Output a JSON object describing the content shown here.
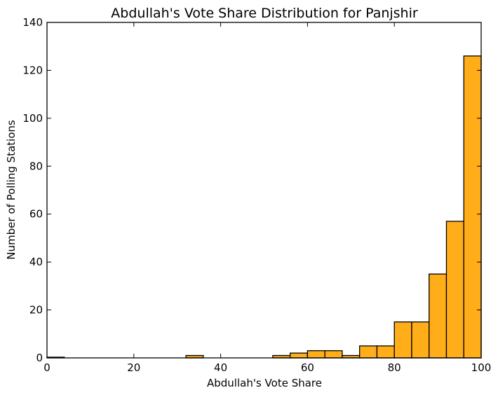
{
  "chart_data": {
    "type": "bar",
    "title": "Abdullah's Vote Share Distribution for Panjshir",
    "xlabel": "Abdullah's Vote Share",
    "ylabel": "Number of Polling Stations",
    "xlim": [
      0,
      100
    ],
    "ylim": [
      0,
      140
    ],
    "xticks": [
      "0",
      "20",
      "40",
      "60",
      "80",
      "100"
    ],
    "yticks": [
      "0",
      "20",
      "40",
      "60",
      "80",
      "100",
      "120",
      "140"
    ],
    "bar_color": "#ffad19",
    "grid": false,
    "bins": [
      {
        "x0": 0,
        "x1": 4,
        "value": 0.3
      },
      {
        "x0": 32,
        "x1": 36,
        "value": 1
      },
      {
        "x0": 52,
        "x1": 56,
        "value": 1
      },
      {
        "x0": 56,
        "x1": 60,
        "value": 2
      },
      {
        "x0": 60,
        "x1": 64,
        "value": 3
      },
      {
        "x0": 64,
        "x1": 68,
        "value": 3
      },
      {
        "x0": 68,
        "x1": 72,
        "value": 1
      },
      {
        "x0": 72,
        "x1": 76,
        "value": 5
      },
      {
        "x0": 76,
        "x1": 80,
        "value": 5
      },
      {
        "x0": 80,
        "x1": 84,
        "value": 15
      },
      {
        "x0": 84,
        "x1": 88,
        "value": 15
      },
      {
        "x0": 88,
        "x1": 92,
        "value": 35
      },
      {
        "x0": 92,
        "x1": 96,
        "value": 57
      },
      {
        "x0": 96,
        "x1": 100,
        "value": 126
      }
    ]
  }
}
